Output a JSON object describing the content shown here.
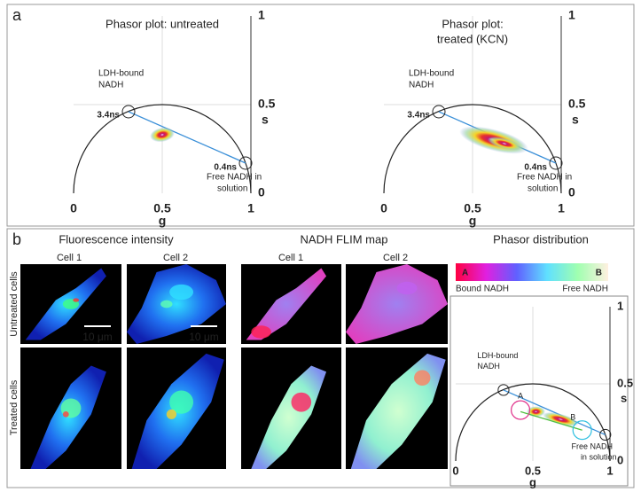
{
  "panel_a": {
    "label": "a",
    "plots": [
      {
        "title": [
          "Phasor plot: untreated"
        ],
        "xlabel": "g",
        "ylabel": "s",
        "xticks": [
          0,
          0.5,
          1
        ],
        "yticks": [
          0,
          0.5,
          1
        ],
        "bound_label": [
          "LDH-bound",
          "NADH"
        ],
        "bound_lifetime": "3.4ns",
        "free_label": [
          "Free NADH in",
          "solution"
        ],
        "free_lifetime": "0.4ns"
      },
      {
        "title": [
          "Phasor plot:",
          "treated (KCN)"
        ],
        "xlabel": "g",
        "ylabel": "s",
        "xticks": [
          0,
          0.5,
          1
        ],
        "yticks": [
          0,
          0.5,
          1
        ],
        "bound_label": [
          "LDH-bound",
          "NADH"
        ],
        "bound_lifetime": "3.4ns",
        "free_label": [
          "Free NADH in",
          "solution"
        ],
        "free_lifetime": "0.4ns"
      }
    ]
  },
  "panel_b": {
    "label": "b",
    "fluorescence": {
      "title": "Fluorescence intensity",
      "cells": [
        "Cell 1",
        "Cell 2"
      ]
    },
    "flim": {
      "title": "NADH FLIM map",
      "cells": [
        "Cell 1",
        "Cell 2"
      ]
    },
    "rows": [
      "Untreated cells",
      "Treated cells"
    ],
    "scale_bars": [
      "10 μm",
      "10 μm"
    ],
    "phasor": {
      "title": "Phasor distribution",
      "colorbar": {
        "start": "A",
        "end": "B",
        "left": "Bound NADH",
        "right": "Free NADH"
      },
      "plot": {
        "xlabel": "g",
        "ylabel": "s",
        "xticks": [
          0,
          0.5,
          1
        ],
        "yticks": [
          0,
          0.5,
          1
        ],
        "bound_label": [
          "LDH-bound",
          "NADH"
        ],
        "free_label": [
          "Free NADH",
          "in solution"
        ],
        "marker_a": "A",
        "marker_b": "B"
      }
    }
  }
}
